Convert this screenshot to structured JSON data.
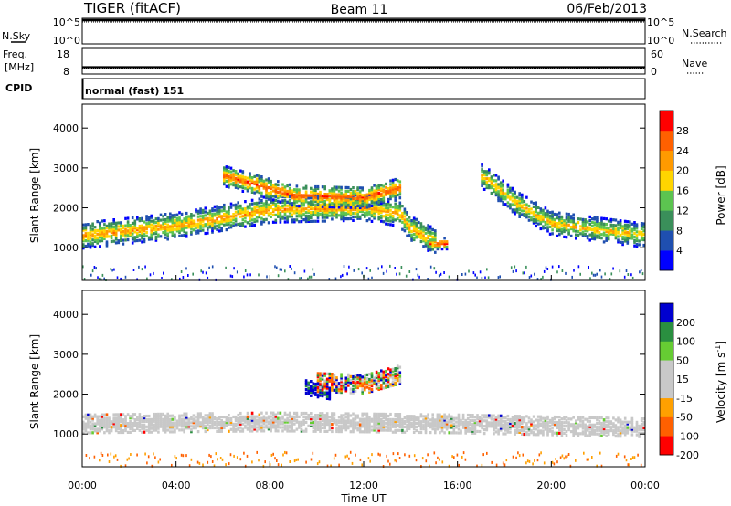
{
  "header": {
    "station": "TIGER (fitACF)",
    "beam": "Beam 11",
    "date": "06/Feb/2013"
  },
  "noise_panel": {
    "left_label": "N.Sky",
    "right_label": "N.Search",
    "left_ticks": [
      "10^5",
      "10^0"
    ],
    "right_ticks": [
      "10^5",
      "10^0"
    ]
  },
  "freq_panel": {
    "left_label_1": "Freq.",
    "left_label_2": "[MHz]",
    "right_label": "Nave",
    "left_ticks": [
      "18",
      "8"
    ],
    "right_ticks": [
      "60",
      "0"
    ]
  },
  "cpid_panel": {
    "label": "CPID",
    "text": "normal (fast) 151"
  },
  "x_axis": {
    "title": "Time UT",
    "ticks": [
      "00:00",
      "04:00",
      "08:00",
      "12:00",
      "16:00",
      "20:00",
      "00:00"
    ]
  },
  "colors": {
    "power_scale": [
      "#0000ff",
      "#1f4fb0",
      "#3a8f5a",
      "#5cc450",
      "#ffd500",
      "#ff9a00",
      "#ff6000",
      "#ff0000"
    ],
    "velocity_scale": [
      "#ff0000",
      "#ff6000",
      "#ffa000",
      "#c8c8c8",
      "#c8c8c8",
      "#66cc33",
      "#2a8f40",
      "#0000d0"
    ]
  },
  "chart_data": [
    {
      "type": "heatmap",
      "title": "",
      "xlabel": "Time UT",
      "ylabel": "Slant Range [km]",
      "xlim": [
        0,
        24
      ],
      "ylim": [
        180,
        4600
      ],
      "y_ticks": [
        "1000",
        "2000",
        "3000",
        "4000"
      ],
      "colorbar": {
        "label": "Power [dB]",
        "ticks": [
          "4",
          "8",
          "12",
          "16",
          "20",
          "24",
          "28"
        ],
        "range": [
          0,
          32
        ]
      },
      "features": [
        {
          "name": "main echo band",
          "points": [
            [
              0,
              1300
            ],
            [
              4,
              1550
            ],
            [
              8,
              1950
            ],
            [
              12,
              2000
            ],
            [
              13.5,
              1850
            ],
            [
              14,
              1450
            ],
            [
              15,
              1150
            ]
          ],
          "peak_power": 22
        },
        {
          "name": "upper echo band",
          "points": [
            [
              6,
              2800
            ],
            [
              9,
              2300
            ],
            [
              12,
              2250
            ],
            [
              13.5,
              2500
            ]
          ],
          "peak_power": 27
        },
        {
          "name": "late echo band",
          "points": [
            [
              17,
              2800
            ],
            [
              18.5,
              2100
            ],
            [
              20,
              1600
            ],
            [
              24,
              1300
            ]
          ],
          "peak_power": 20
        },
        {
          "name": "strong patch",
          "points": [
            [
              14.8,
              1100
            ],
            [
              15.5,
              1100
            ]
          ],
          "peak_power": 30
        }
      ]
    },
    {
      "type": "heatmap",
      "title": "",
      "xlabel": "Time UT",
      "ylabel": "Slant Range [km]",
      "xlim": [
        0,
        24
      ],
      "ylim": [
        180,
        4600
      ],
      "y_ticks": [
        "1000",
        "2000",
        "3000",
        "4000"
      ],
      "colorbar": {
        "label": "Velocity [m s^-1]",
        "ticks": [
          "200",
          "100",
          "50",
          "15",
          "-15",
          "-50",
          "-100",
          "-200"
        ]
      },
      "features": [
        {
          "name": "ground scatter band",
          "points": [
            [
              0,
              1250
            ],
            [
              8,
              1300
            ],
            [
              16,
              1250
            ],
            [
              24,
              1150
            ]
          ],
          "velocity": 0
        },
        {
          "name": "blue patch",
          "points": [
            [
              9.5,
              2150
            ],
            [
              10.5,
              2050
            ]
          ],
          "velocity": 200
        },
        {
          "name": "mixed upper band",
          "points": [
            [
              10,
              2300
            ],
            [
              12,
              2250
            ],
            [
              13.5,
              2500
            ]
          ],
          "velocity": -60
        }
      ]
    }
  ]
}
